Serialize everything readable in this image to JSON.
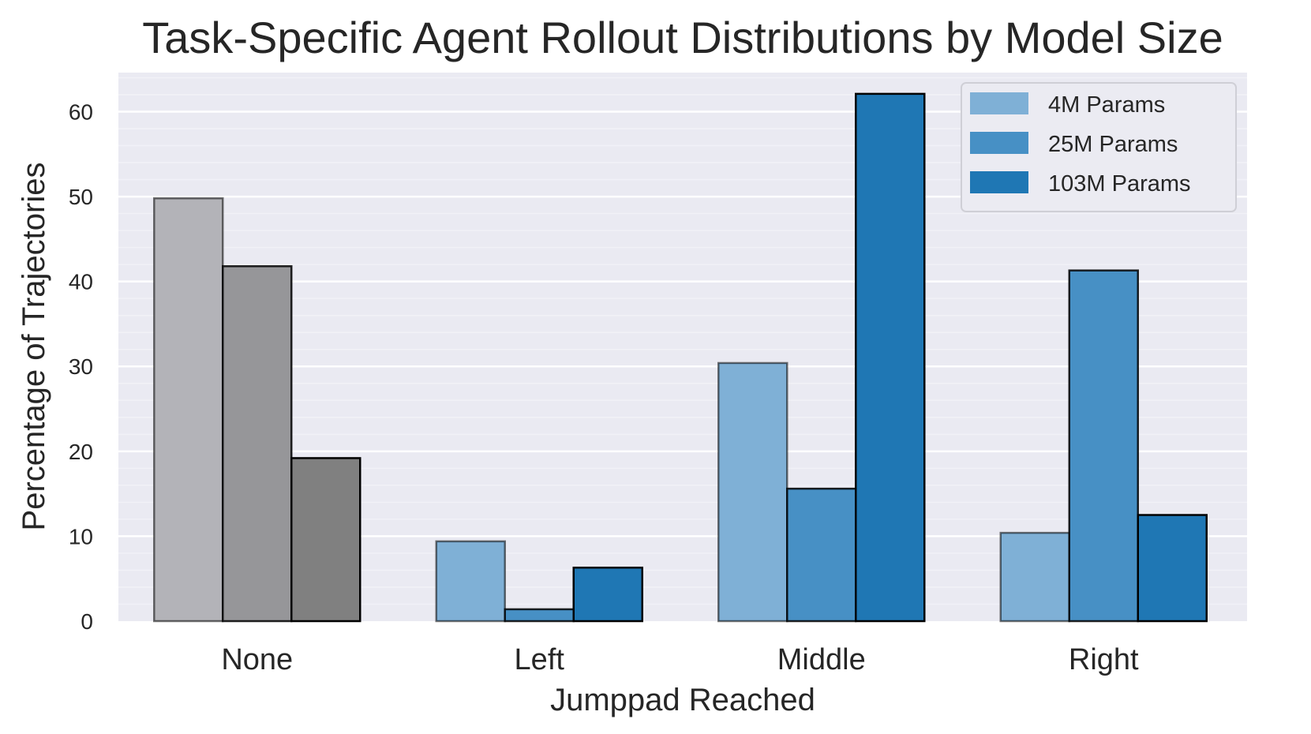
{
  "chart_data": {
    "type": "bar",
    "title": "Task-Specific Agent Rollout Distributions by Model Size",
    "xlabel": "Jumppad Reached",
    "ylabel": "Percentage of Trajectories",
    "categories": [
      "None",
      "Left",
      "Middle",
      "Right"
    ],
    "series": [
      {
        "name": "4M Params",
        "values": [
          49.8,
          9.4,
          30.4,
          10.4
        ]
      },
      {
        "name": "25M Params",
        "values": [
          41.8,
          1.4,
          15.6,
          41.3
        ]
      },
      {
        "name": "103M Params",
        "values": [
          19.2,
          6.3,
          62.1,
          12.5
        ]
      }
    ],
    "ylim": [
      0,
      64.6
    ],
    "yticks": [
      0,
      10,
      20,
      30,
      40,
      50,
      60
    ],
    "grid": true,
    "legend_position": "top-right",
    "colors": {
      "background": "#eaeaf2",
      "grid_major": "#ffffff",
      "grid_minor": "#f1f1f7",
      "series": [
        "#7fb0d6",
        "#4790c5",
        "#1f77b4"
      ],
      "none_category": [
        "#b3b3b8",
        "#969699",
        "#808080"
      ],
      "edge": "#000000"
    },
    "series_opacity": [
      0.55,
      0.85,
      1.0
    ]
  }
}
